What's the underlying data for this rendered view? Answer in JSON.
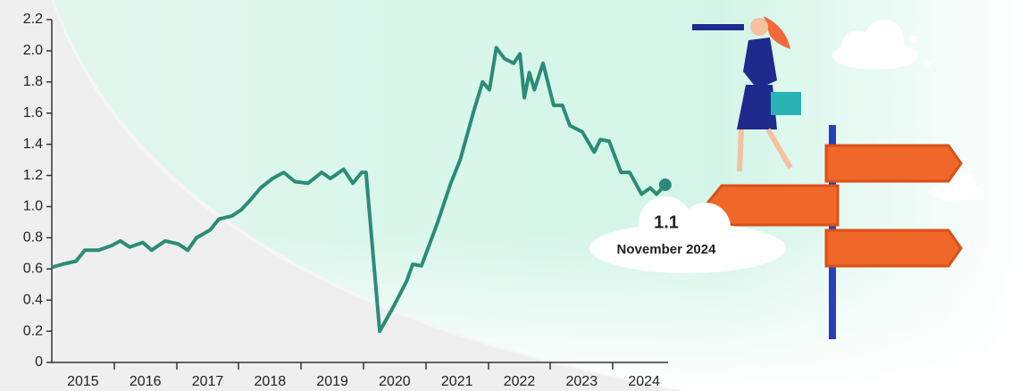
{
  "chart_data": {
    "type": "line",
    "x": [
      2015.0,
      2015.17,
      2015.39,
      2015.53,
      2015.75,
      2015.96,
      2016.1,
      2016.25,
      2016.46,
      2016.6,
      2016.82,
      2017.03,
      2017.18,
      2017.32,
      2017.54,
      2017.68,
      2017.89,
      2018.04,
      2018.18,
      2018.35,
      2018.54,
      2018.72,
      2018.9,
      2019.11,
      2019.33,
      2019.47,
      2019.68,
      2019.83,
      2019.97,
      2020.04,
      2020.26,
      2020.47,
      2020.69,
      2020.79,
      2020.93,
      2021.19,
      2021.4,
      2021.55,
      2021.76,
      2021.91,
      2022.02,
      2022.13,
      2022.26,
      2022.41,
      2022.51,
      2022.58,
      2022.66,
      2022.74,
      2022.88,
      2023.05,
      2023.19,
      2023.31,
      2023.51,
      2023.7,
      2023.8,
      2023.94,
      2024.13,
      2024.27,
      2024.46,
      2024.6,
      2024.7,
      2024.84
    ],
    "values": [
      0.61,
      0.63,
      0.65,
      0.72,
      0.72,
      0.75,
      0.78,
      0.74,
      0.77,
      0.72,
      0.78,
      0.76,
      0.72,
      0.8,
      0.85,
      0.92,
      0.94,
      0.98,
      1.04,
      1.12,
      1.18,
      1.22,
      1.16,
      1.15,
      1.22,
      1.18,
      1.24,
      1.15,
      1.22,
      1.22,
      0.2,
      0.35,
      0.52,
      0.63,
      0.62,
      0.9,
      1.15,
      1.3,
      1.6,
      1.8,
      1.75,
      2.02,
      1.95,
      1.92,
      1.98,
      1.7,
      1.86,
      1.75,
      1.92,
      1.65,
      1.65,
      1.52,
      1.48,
      1.35,
      1.43,
      1.42,
      1.22,
      1.22,
      1.08,
      1.12,
      1.08,
      1.14
    ],
    "color": "#2b8c76",
    "xlim": [
      2015,
      2025
    ],
    "xticks": [
      {
        "value": 2015.5,
        "label": "2015"
      },
      {
        "value": 2016.5,
        "label": "2016"
      },
      {
        "value": 2017.5,
        "label": "2017"
      },
      {
        "value": 2018.5,
        "label": "2018"
      },
      {
        "value": 2019.5,
        "label": "2019"
      },
      {
        "value": 2020.5,
        "label": "2020"
      },
      {
        "value": 2021.5,
        "label": "2021"
      },
      {
        "value": 2022.5,
        "label": "2022"
      },
      {
        "value": 2023.5,
        "label": "2023"
      },
      {
        "value": 2024.5,
        "label": "2024"
      }
    ],
    "ylim": [
      0,
      2.2
    ],
    "yticks": [
      0,
      0.2,
      0.4,
      0.6,
      0.8,
      {
        "value": 1,
        "label": "1.0"
      },
      1.2,
      1.4,
      1.6,
      1.8,
      {
        "value": 2,
        "label": "2.0"
      },
      2.2
    ],
    "annotation": {
      "value_label": "1.1",
      "date": "November 2024"
    }
  }
}
